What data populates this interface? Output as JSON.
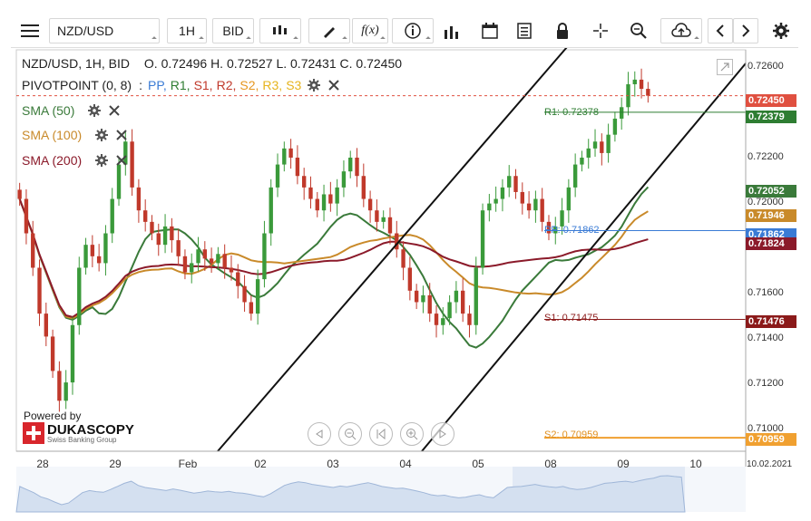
{
  "toolbar": {
    "symbol": "NZD/USD",
    "timeframe": "1H",
    "price_type": "BID"
  },
  "header": {
    "title": "NZD/USD, 1H, BID",
    "ohlc": "O. 0.72496 H. 0.72527 L. 0.72431 C. 0.72450"
  },
  "indicators": {
    "pivot_name": "PIVOTPOINT (0, 8)",
    "pivot_sep": ":",
    "pivot_labels": [
      "PP,",
      "R1,",
      "S1,",
      "R2,",
      "S2,",
      "R3,",
      "S3"
    ],
    "sma50": "SMA (50)",
    "sma100": "SMA (100)",
    "sma200": "SMA (200)"
  },
  "pivot_lines": {
    "r1": "R1: 0.72378",
    "pp": "PP: 0.71862",
    "s1": "S1: 0.71475",
    "s2": "S2: 0.70959"
  },
  "price_badges": {
    "last": "0.72450",
    "r1": "0.72379",
    "sma50": "0.72052",
    "sma100": "0.71946",
    "pp": "0.71862",
    "sma200": "0.71824",
    "s1": "0.71476",
    "s2": "0.70959"
  },
  "colors": {
    "up": "#3a9a3a",
    "down": "#c0392b",
    "sma50": "#3a7a3a",
    "sma100": "#c98a2a",
    "sma200": "#8b1a2a",
    "pp": "#3a7bd5",
    "r1": "#2e7d32",
    "s1": "#8b1a1a",
    "s2": "#f0a030",
    "last": "#e05040"
  },
  "branding": {
    "powered_by": "Powered by",
    "company": "DUKASCOPY",
    "tagline": "Swiss Banking Group"
  },
  "chart_data": {
    "type": "candlestick",
    "title": "NZD/USD, 1H, BID",
    "y_ticks": [
      "0.72600",
      "0.72200",
      "0.72000",
      "0.71600",
      "0.71400",
      "0.71200",
      "0.71000"
    ],
    "x_ticks": [
      "28",
      "29",
      "Feb",
      "02",
      "03",
      "04",
      "05",
      "08",
      "09",
      "10"
    ],
    "x_date": "10.02.2021",
    "ylim": [
      0.709,
      0.7265
    ],
    "last_price": 0.7245,
    "ohlc_last": {
      "open": 0.72496,
      "high": 0.72527,
      "low": 0.72431,
      "close": 0.7245
    },
    "pivot_points": {
      "R1": 0.72378,
      "PP": 0.71862,
      "S1": 0.71475,
      "S2": 0.70959
    },
    "sma": {
      "SMA50": 0.72052,
      "SMA100": 0.71946,
      "SMA200": 0.71824
    },
    "closes": [
      0.72,
      0.7185,
      0.717,
      0.715,
      0.714,
      0.7125,
      0.7112,
      0.712,
      0.7145,
      0.717,
      0.718,
      0.7175,
      0.7172,
      0.7185,
      0.72,
      0.7215,
      0.7225,
      0.7205,
      0.7195,
      0.719,
      0.7185,
      0.718,
      0.7188,
      0.7182,
      0.7175,
      0.7168,
      0.7172,
      0.7178,
      0.7174,
      0.7172,
      0.7176,
      0.717,
      0.7168,
      0.7162,
      0.7155,
      0.715,
      0.7165,
      0.7185,
      0.7205,
      0.7215,
      0.7222,
      0.7218,
      0.721,
      0.7205,
      0.72,
      0.7195,
      0.7202,
      0.7198,
      0.7205,
      0.7212,
      0.7218,
      0.721,
      0.72,
      0.7195,
      0.719,
      0.7192,
      0.7185,
      0.7178,
      0.717,
      0.716,
      0.7155,
      0.7158,
      0.715,
      0.7145,
      0.7148,
      0.7155,
      0.716,
      0.715,
      0.7145,
      0.717,
      0.7195,
      0.7198,
      0.72,
      0.7205,
      0.721,
      0.7203,
      0.7198,
      0.7195,
      0.72,
      0.719,
      0.7185,
      0.7188,
      0.7195,
      0.7205,
      0.7215,
      0.7218,
      0.7222,
      0.7225,
      0.722,
      0.7228,
      0.7235,
      0.724,
      0.725,
      0.7252,
      0.7248,
      0.7245
    ]
  }
}
